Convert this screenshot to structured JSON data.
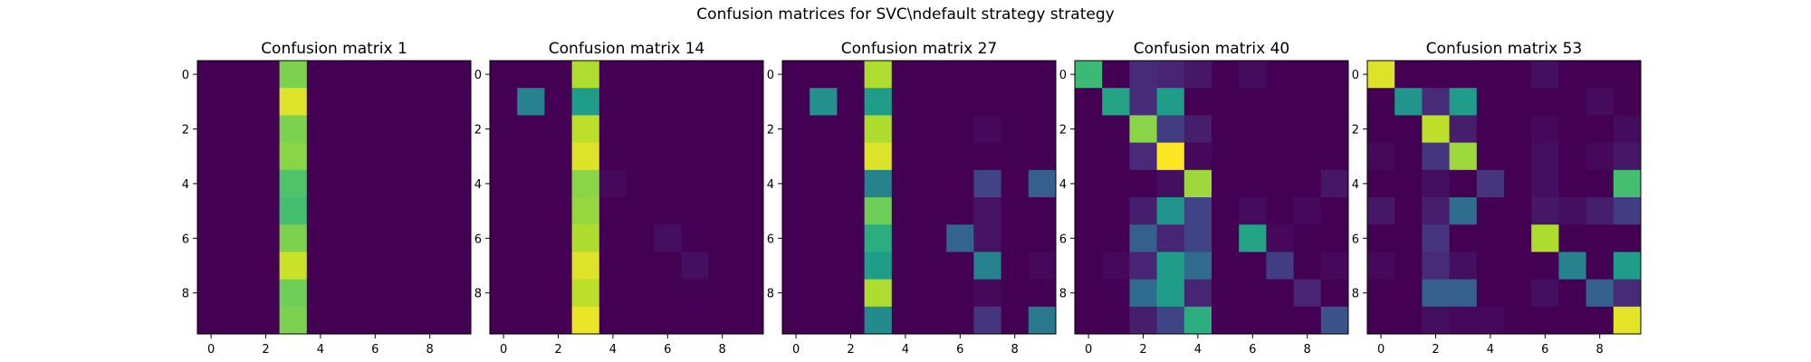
{
  "figure_title": "Confusion matrices for SVC\\ndefault strategy strategy",
  "colormap": [
    "#440154",
    "#482878",
    "#3e4a89",
    "#31688e",
    "#26828e",
    "#1f9e89",
    "#35b779",
    "#6ece58",
    "#b5de2b",
    "#fde725"
  ],
  "chart_data": [
    {
      "type": "heatmap",
      "title": "Confusion matrix 1",
      "xticks": [
        0,
        2,
        4,
        6,
        8
      ],
      "yticks": [
        0,
        2,
        4,
        6,
        8
      ],
      "matrix": [
        [
          0,
          0,
          0,
          0.8,
          0,
          0,
          0,
          0,
          0,
          0
        ],
        [
          0,
          0,
          0,
          0.95,
          0,
          0,
          0,
          0,
          0,
          0
        ],
        [
          0,
          0,
          0,
          0.8,
          0,
          0,
          0,
          0,
          0,
          0
        ],
        [
          0,
          0,
          0,
          0.82,
          0,
          0,
          0,
          0,
          0,
          0
        ],
        [
          0,
          0,
          0,
          0.72,
          0,
          0,
          0,
          0,
          0,
          0
        ],
        [
          0,
          0,
          0,
          0.7,
          0,
          0,
          0,
          0,
          0,
          0
        ],
        [
          0,
          0,
          0,
          0.8,
          0,
          0,
          0,
          0,
          0,
          0
        ],
        [
          0,
          0,
          0,
          0.92,
          0,
          0,
          0,
          0,
          0,
          0
        ],
        [
          0,
          0,
          0,
          0.78,
          0,
          0,
          0,
          0,
          0,
          0
        ],
        [
          0,
          0,
          0,
          0.8,
          0,
          0,
          0,
          0,
          0,
          0
        ]
      ]
    },
    {
      "type": "heatmap",
      "title": "Confusion matrix 14",
      "xticks": [
        0,
        2,
        4,
        6,
        8
      ],
      "yticks": [
        0,
        2,
        4,
        6,
        8
      ],
      "matrix": [
        [
          0,
          0,
          0,
          0.88,
          0,
          0,
          0,
          0,
          0,
          0
        ],
        [
          0,
          0.45,
          0,
          0.55,
          0,
          0,
          0,
          0,
          0,
          0
        ],
        [
          0,
          0,
          0,
          0.9,
          0,
          0,
          0,
          0,
          0,
          0
        ],
        [
          0,
          0,
          0,
          0.95,
          0,
          0,
          0,
          0,
          0,
          0
        ],
        [
          0,
          0,
          0,
          0.82,
          0.02,
          0,
          0,
          0,
          0,
          0
        ],
        [
          0,
          0,
          0,
          0.84,
          0,
          0,
          0,
          0,
          0,
          0
        ],
        [
          0,
          0,
          0,
          0.88,
          0,
          0,
          0.04,
          0,
          0,
          0
        ],
        [
          0,
          0,
          0,
          0.95,
          0,
          0,
          0,
          0.04,
          0,
          0
        ],
        [
          0,
          0,
          0,
          0.9,
          0,
          0,
          0,
          0,
          0,
          0
        ],
        [
          0,
          0,
          0,
          0.97,
          0,
          0,
          0,
          0,
          0,
          0
        ]
      ]
    },
    {
      "type": "heatmap",
      "title": "Confusion matrix 27",
      "xticks": [
        0,
        2,
        4,
        6,
        8
      ],
      "yticks": [
        0,
        2,
        4,
        6,
        8
      ],
      "matrix": [
        [
          0,
          0,
          0,
          0.88,
          0,
          0,
          0,
          0,
          0,
          0
        ],
        [
          0,
          0.5,
          0,
          0.55,
          0,
          0,
          0,
          0,
          0,
          0
        ],
        [
          0,
          0,
          0,
          0.88,
          0,
          0,
          0,
          0.02,
          0,
          0
        ],
        [
          0,
          0,
          0,
          0.95,
          0,
          0,
          0,
          0,
          0,
          0
        ],
        [
          0,
          0,
          0,
          0.45,
          0,
          0,
          0,
          0.2,
          0,
          0.3
        ],
        [
          0,
          0,
          0,
          0.78,
          0,
          0,
          0,
          0.05,
          0,
          0
        ],
        [
          0,
          0,
          0,
          0.62,
          0,
          0,
          0.32,
          0.05,
          0,
          0
        ],
        [
          0,
          0,
          0,
          0.55,
          0,
          0,
          0,
          0.45,
          0,
          0.02
        ],
        [
          0,
          0,
          0,
          0.88,
          0,
          0,
          0,
          0.02,
          0,
          0
        ],
        [
          0,
          0,
          0,
          0.48,
          0,
          0,
          0,
          0.15,
          0,
          0.4
        ]
      ]
    },
    {
      "type": "heatmap",
      "title": "Confusion matrix 40",
      "xticks": [
        0,
        2,
        4,
        6,
        8
      ],
      "yticks": [
        0,
        2,
        4,
        6,
        8
      ],
      "matrix": [
        [
          0.68,
          0,
          0.12,
          0.1,
          0.06,
          0,
          0.03,
          0,
          0,
          0
        ],
        [
          0,
          0.58,
          0.12,
          0.55,
          0,
          0,
          0,
          0,
          0,
          0
        ],
        [
          0,
          0,
          0.82,
          0.18,
          0.08,
          0,
          0,
          0,
          0,
          0
        ],
        [
          0,
          0,
          0.12,
          1.0,
          0.02,
          0,
          0,
          0,
          0,
          0
        ],
        [
          0,
          0,
          0,
          0.04,
          0.85,
          0,
          0,
          0,
          0,
          0.06
        ],
        [
          0,
          0,
          0.08,
          0.52,
          0.2,
          0,
          0.03,
          0,
          0.02,
          0
        ],
        [
          0,
          0,
          0.3,
          0.1,
          0.2,
          0,
          0.58,
          0.02,
          0,
          0
        ],
        [
          0,
          0.02,
          0.1,
          0.55,
          0.35,
          0,
          0,
          0.18,
          0,
          0.02
        ],
        [
          0,
          0,
          0.35,
          0.55,
          0.1,
          0,
          0,
          0,
          0.1,
          0
        ],
        [
          0,
          0,
          0.08,
          0.2,
          0.62,
          0,
          0,
          0,
          0,
          0.25
        ]
      ]
    },
    {
      "type": "heatmap",
      "title": "Confusion matrix 53",
      "xticks": [
        0,
        2,
        4,
        6,
        8
      ],
      "yticks": [
        0,
        2,
        4,
        6,
        8
      ],
      "matrix": [
        [
          0.95,
          0,
          0,
          0,
          0,
          0,
          0.04,
          0,
          0,
          0
        ],
        [
          0,
          0.52,
          0.12,
          0.55,
          0,
          0,
          0,
          0,
          0.03,
          0
        ],
        [
          0,
          0,
          0.9,
          0.08,
          0,
          0,
          0.02,
          0,
          0,
          0.03
        ],
        [
          0.02,
          0,
          0.15,
          0.85,
          0,
          0,
          0.04,
          0,
          0.02,
          0.06
        ],
        [
          0,
          0,
          0.04,
          0,
          0.15,
          0,
          0.04,
          0,
          0,
          0.7
        ],
        [
          0.06,
          0,
          0.08,
          0.35,
          0,
          0,
          0.06,
          0.04,
          0.08,
          0.18
        ],
        [
          0,
          0,
          0.15,
          0,
          0,
          0,
          0.88,
          0,
          0,
          0
        ],
        [
          0.02,
          0,
          0.12,
          0.04,
          0,
          0,
          0,
          0.45,
          0,
          0.55
        ],
        [
          0,
          0,
          0.3,
          0.3,
          0,
          0,
          0.04,
          0,
          0.3,
          0.12
        ],
        [
          0,
          0,
          0.04,
          0.02,
          0.02,
          0,
          0,
          0,
          0,
          0.96
        ]
      ]
    }
  ]
}
